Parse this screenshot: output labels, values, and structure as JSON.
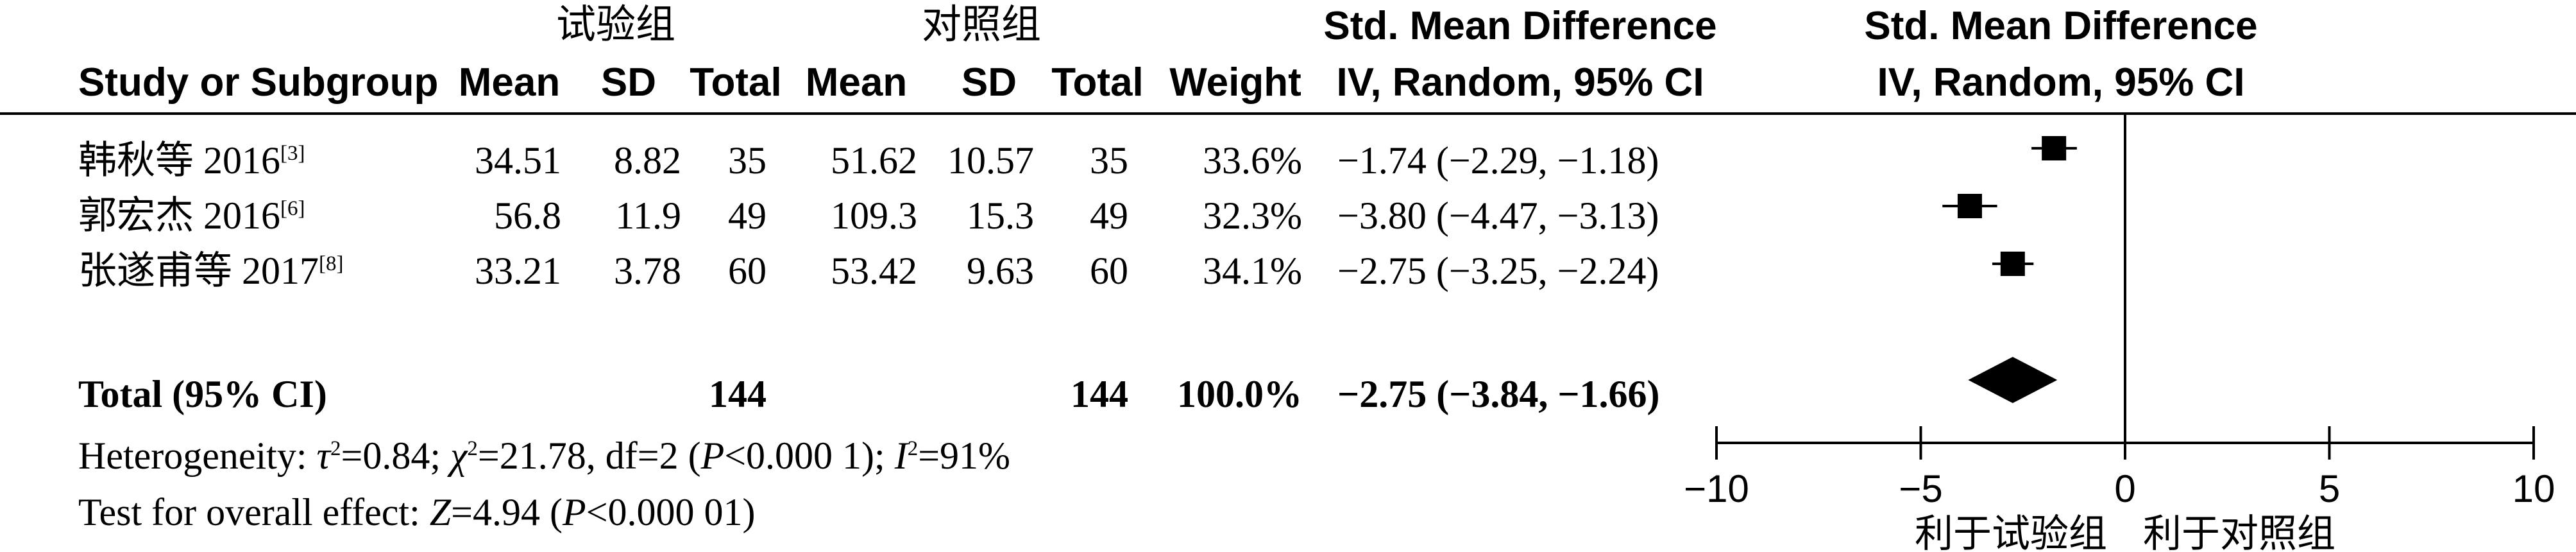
{
  "header": {
    "group1": "试验组",
    "group2": "对照组",
    "effect_label": "Std. Mean Difference",
    "study_col": "Study or Subgroup",
    "mean": "Mean",
    "sd": "SD",
    "total": "Total",
    "weight": "Weight",
    "method": "IV, Random, 95% CI",
    "plot_effect_label": "Std. Mean Difference",
    "plot_method": "IV, Random, 95% CI"
  },
  "studies": [
    {
      "name": "韩秋等 2016",
      "ref": "[3]",
      "exp_mean": "34.51",
      "exp_sd": "8.82",
      "exp_total": "35",
      "ctl_mean": "51.62",
      "ctl_sd": "10.57",
      "ctl_total": "35",
      "weight": "33.6%",
      "ci_text": "−1.74 (−2.29, −1.18)"
    },
    {
      "name": "郭宏杰 2016",
      "ref": "[6]",
      "exp_mean": "56.8",
      "exp_sd": "11.9",
      "exp_total": "49",
      "ctl_mean": "109.3",
      "ctl_sd": "15.3",
      "ctl_total": "49",
      "weight": "32.3%",
      "ci_text": "−3.80 (−4.47, −3.13)"
    },
    {
      "name": "张遂甫等 2017",
      "ref": "[8]",
      "exp_mean": "33.21",
      "exp_sd": "3.78",
      "exp_total": "60",
      "ctl_mean": "53.42",
      "ctl_sd": "9.63",
      "ctl_total": "60",
      "weight": "34.1%",
      "ci_text": "−2.75 (−3.25, −2.24)"
    }
  ],
  "total": {
    "label": "Total (95% CI)",
    "exp_total": "144",
    "ctl_total": "144",
    "weight": "100.0%",
    "ci_text": "−2.75 (−3.84, −1.66)"
  },
  "heterogeneity": {
    "prefix": "Heterogeneity: ",
    "tau": "τ",
    "tau_val": "=0.84; ",
    "chi": "χ",
    "chi_val": "=21.78, df=2 (",
    "p": "P",
    "p_val": "<0.000 1); ",
    "i": "I",
    "i_val": "=91%"
  },
  "overall": {
    "prefix": "Test for overall effect: ",
    "z": "Z",
    "z_val": "=4.94 (",
    "p": "P",
    "p_val": "<0.000 01)"
  },
  "chart_data": {
    "type": "scatter",
    "title": "Std. Mean Difference IV, Random, 95% CI",
    "xlim": [
      -10,
      10
    ],
    "xticks": [
      -10,
      -5,
      0,
      5,
      10
    ],
    "xtick_labels": [
      "−10",
      "−5",
      "0",
      "5",
      "10"
    ],
    "favours_left": "利于试验组",
    "favours_right": "利于对照组",
    "points": [
      {
        "study": "韩秋等 2016",
        "smd": -1.74,
        "lower": -2.29,
        "upper": -1.18,
        "weight": 33.6
      },
      {
        "study": "郭宏杰 2016",
        "smd": -3.8,
        "lower": -4.47,
        "upper": -3.13,
        "weight": 32.3
      },
      {
        "study": "张遂甫等 2017",
        "smd": -2.75,
        "lower": -3.25,
        "upper": -2.24,
        "weight": 34.1
      }
    ],
    "pooled": {
      "smd": -2.75,
      "lower": -3.84,
      "upper": -1.66
    }
  }
}
